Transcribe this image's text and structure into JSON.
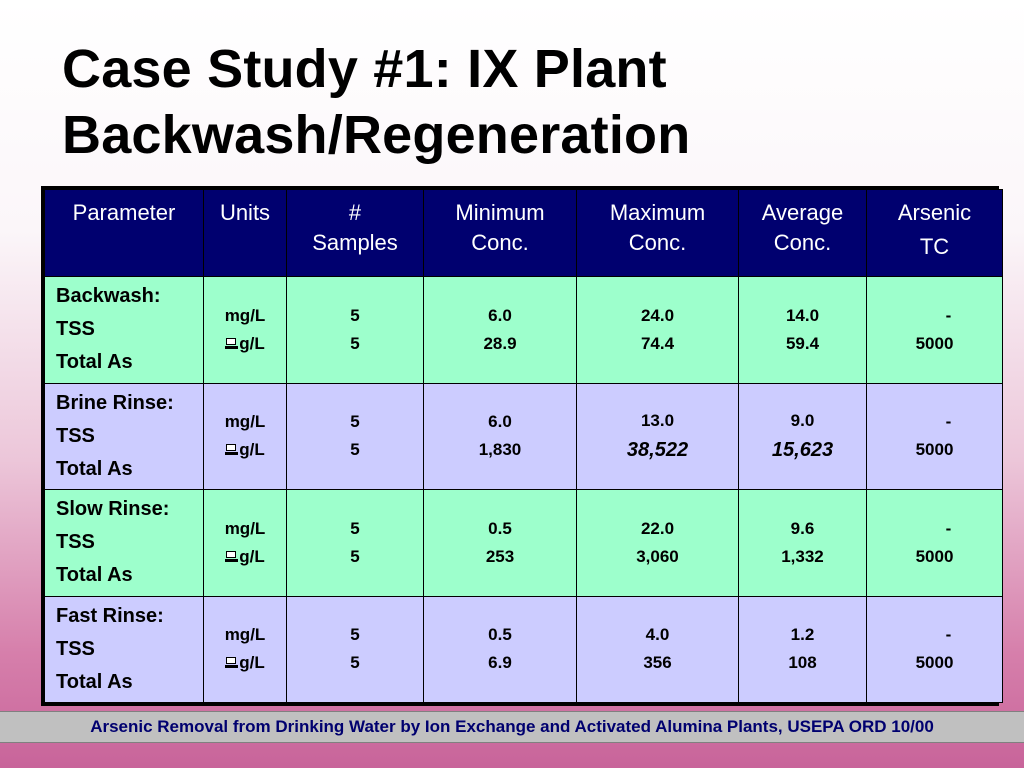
{
  "slide": {
    "title_line1": "Case Study #1: IX Plant",
    "title_line2": "Backwash/Regeneration"
  },
  "table": {
    "headers": {
      "parameter": "Parameter",
      "units": "Units",
      "samples_line1": "#",
      "samples_line2": "Samples",
      "min_line1": "Minimum",
      "min_line2": "Conc.",
      "max_line1": "Maximum",
      "max_line2": "Conc.",
      "avg_line1": "Average",
      "avg_line2": "Conc.",
      "arsenic_line1": "Arsenic",
      "arsenic_line2": "TC"
    },
    "rows": [
      {
        "stage": "Backwash:",
        "p1": "TSS",
        "p2": "Total As",
        "u1": "mg/L",
        "u2": "g/L",
        "s1": "5",
        "s2": "5",
        "min1": "6.0",
        "min2": "28.9",
        "max1": "24.0",
        "max2": "74.4",
        "avg1": "14.0",
        "avg2": "59.4",
        "tc1": "-",
        "tc2": "5000"
      },
      {
        "stage": "Brine Rinse:",
        "p1": "TSS",
        "p2": "Total As",
        "u1": "mg/L",
        "u2": "g/L",
        "s1": "5",
        "s2": "5",
        "min1": "6.0",
        "min2": "1,830",
        "max1": "13.0",
        "max2": "38,522",
        "avg1": "9.0",
        "avg2": "15,623",
        "tc1": "-",
        "tc2": "5000"
      },
      {
        "stage": "Slow Rinse:",
        "p1": "TSS",
        "p2": "Total As",
        "u1": "mg/L",
        "u2": "g/L",
        "s1": "5",
        "s2": "5",
        "min1": "0.5",
        "min2": "253",
        "max1": "22.0",
        "max2": "3,060",
        "avg1": "9.6",
        "avg2": "1,332",
        "tc1": "-",
        "tc2": "5000"
      },
      {
        "stage": "Fast Rinse:",
        "p1": "TSS",
        "p2": "Total As",
        "u1": "mg/L",
        "u2": "g/L",
        "s1": "5",
        "s2": "5",
        "min1": "0.5",
        "min2": "6.9",
        "max1": "4.0",
        "max2": "356",
        "avg1": "1.2",
        "avg2": "108",
        "tc1": "-",
        "tc2": "5000"
      }
    ]
  },
  "footer": {
    "text": "Arsenic Removal from Drinking Water by Ion Exchange and Activated Alumina Plants, USEPA ORD  10/00"
  },
  "colors": {
    "header_bg": "#00006f",
    "green_row": "#9dffcc",
    "lavender_row": "#ccccff",
    "footer_bg": "#c0c0c0",
    "footer_text": "#00006f"
  },
  "icons": {
    "micro_symbol": "missing-glyph-box-icon"
  }
}
